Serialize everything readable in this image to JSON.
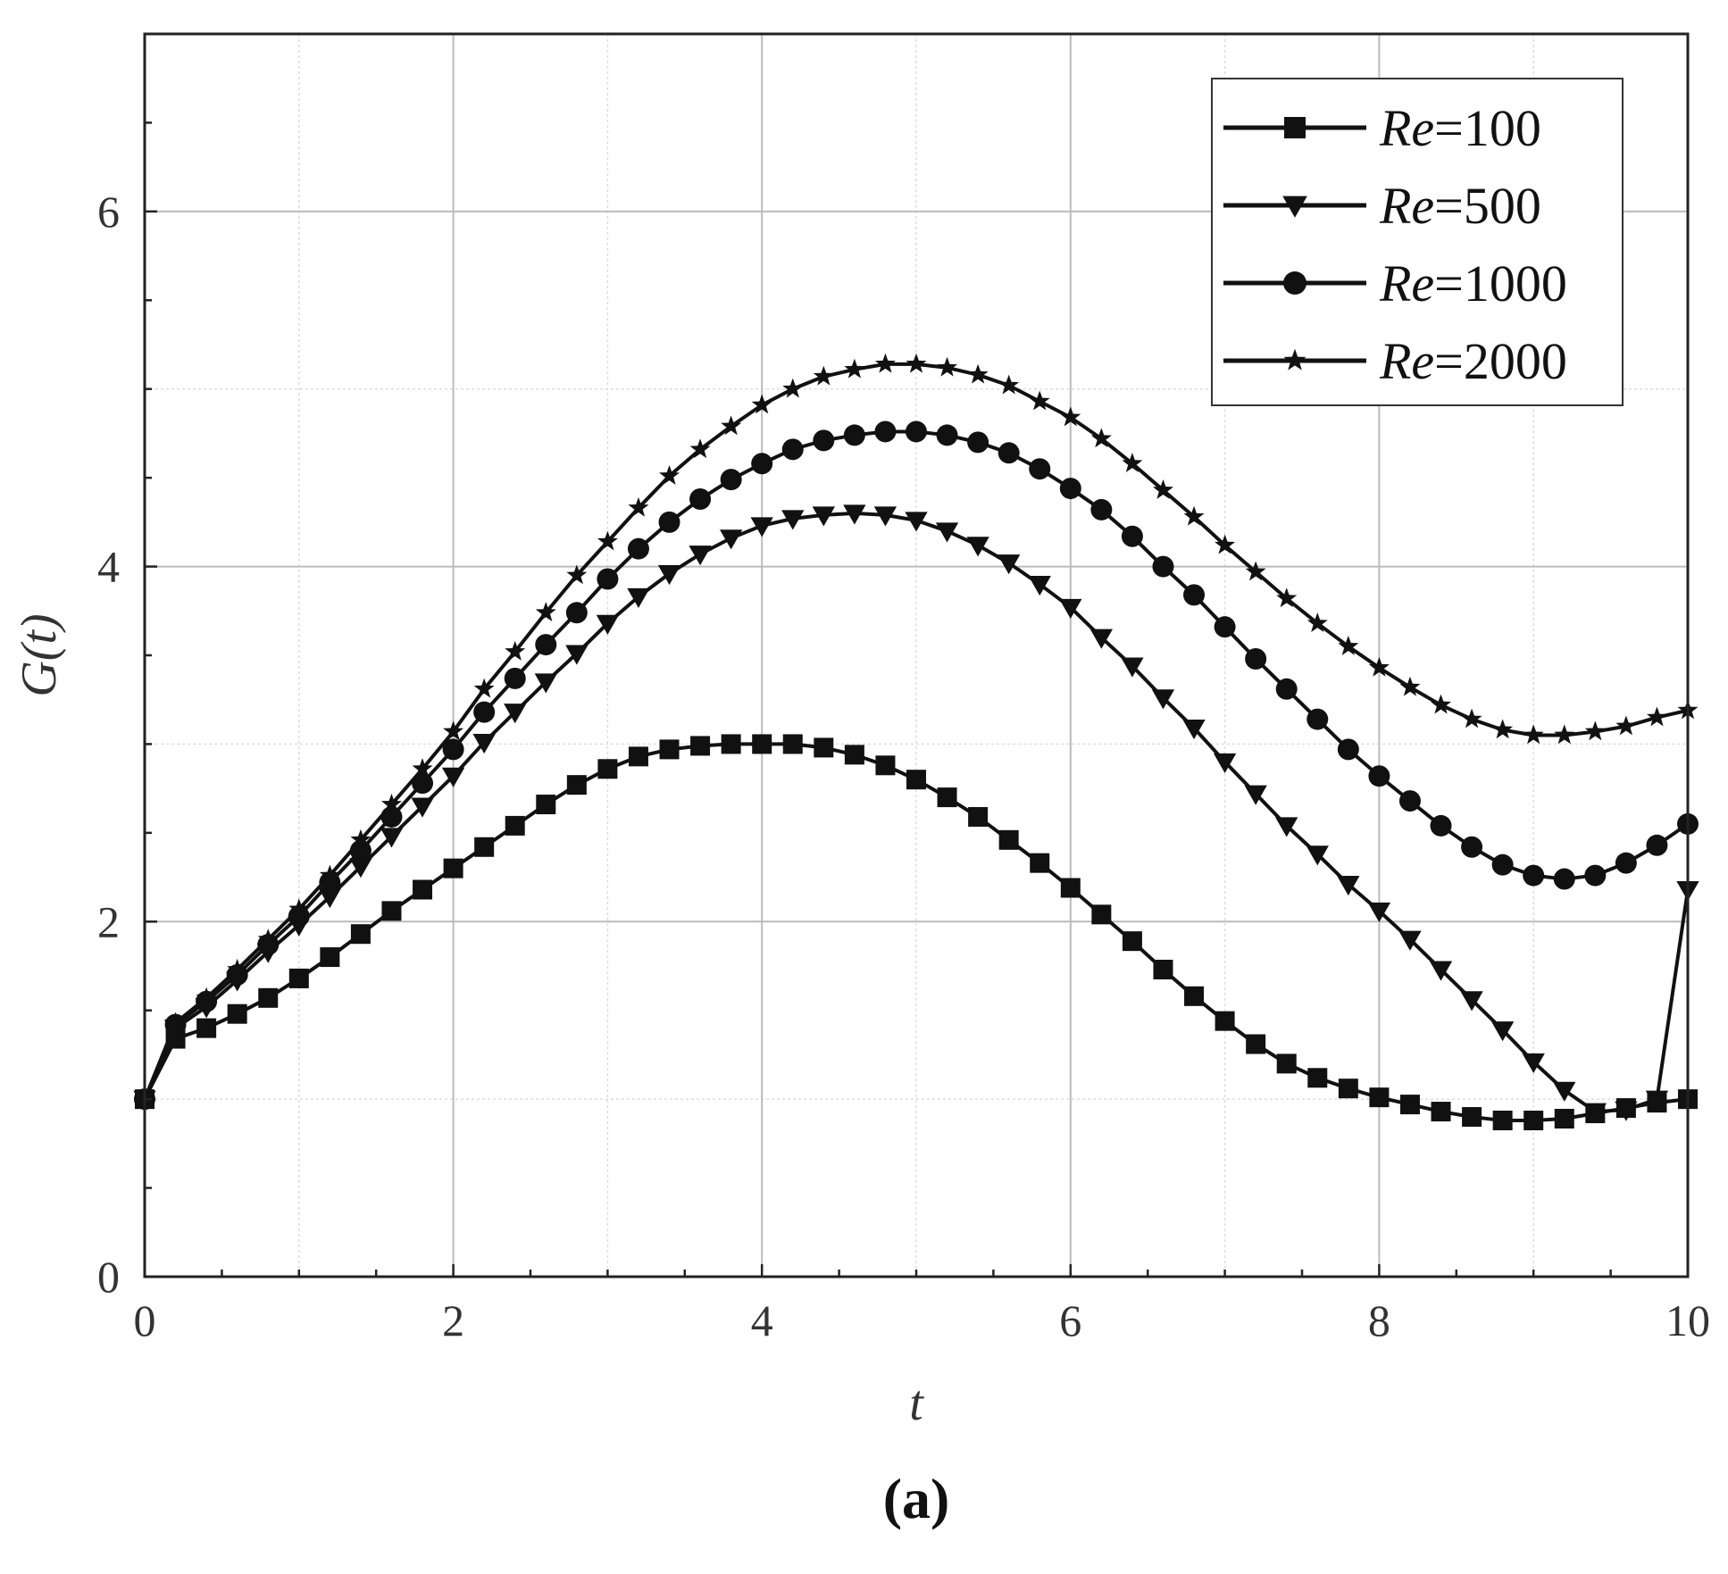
{
  "chart_data": {
    "type": "line",
    "title": "",
    "panel_label": "(a)",
    "xlabel": "t",
    "ylabel": "G(t)",
    "xlim": [
      0,
      10
    ],
    "ylim": [
      0,
      7
    ],
    "xticks": [
      0,
      2,
      4,
      6,
      8,
      10
    ],
    "yticks": [
      0,
      2,
      4,
      6
    ],
    "grid": true,
    "minor_grid": true,
    "legend_position": "top-right",
    "line_color": "#111111",
    "series": [
      {
        "name": "Re=100",
        "name_italic": "Re",
        "name_rest": "=100",
        "marker": "square",
        "x": [
          0,
          0.2,
          0.4,
          0.6,
          0.8,
          1.0,
          1.2,
          1.4,
          1.6,
          1.8,
          2.0,
          2.2,
          2.4,
          2.6,
          2.8,
          3.0,
          3.2,
          3.4,
          3.6,
          3.8,
          4.0,
          4.2,
          4.4,
          4.6,
          4.8,
          5.0,
          5.2,
          5.4,
          5.6,
          5.8,
          6.0,
          6.2,
          6.4,
          6.6,
          6.8,
          7.0,
          7.2,
          7.4,
          7.6,
          7.8,
          8.0,
          8.2,
          8.4,
          8.6,
          8.8,
          9.0,
          9.2,
          9.4,
          9.6,
          9.8,
          10.0
        ],
        "values": [
          1.0,
          1.34,
          1.4,
          1.48,
          1.57,
          1.68,
          1.8,
          1.93,
          2.06,
          2.18,
          2.3,
          2.42,
          2.54,
          2.66,
          2.77,
          2.86,
          2.93,
          2.97,
          2.99,
          3.0,
          3.0,
          3.0,
          2.98,
          2.94,
          2.88,
          2.8,
          2.7,
          2.59,
          2.46,
          2.33,
          2.19,
          2.04,
          1.89,
          1.73,
          1.58,
          1.44,
          1.31,
          1.2,
          1.12,
          1.06,
          1.01,
          0.97,
          0.93,
          0.9,
          0.88,
          0.88,
          0.89,
          0.92,
          0.95,
          0.98,
          1.0
        ]
      },
      {
        "name": "Re=500",
        "name_italic": "Re",
        "name_rest": "=500",
        "marker": "triangle-down",
        "x": [
          0,
          0.2,
          0.4,
          0.6,
          0.8,
          1.0,
          1.2,
          1.4,
          1.6,
          1.8,
          2.0,
          2.2,
          2.4,
          2.6,
          2.8,
          3.0,
          3.2,
          3.4,
          3.6,
          3.8,
          4.0,
          4.2,
          4.4,
          4.6,
          4.8,
          5.0,
          5.2,
          5.4,
          5.6,
          5.8,
          6.0,
          6.2,
          6.4,
          6.6,
          6.8,
          7.0,
          7.2,
          7.4,
          7.6,
          7.8,
          8.0,
          8.2,
          8.4,
          8.6,
          8.8,
          9.0,
          9.2,
          9.4,
          9.6,
          9.8,
          10.0
        ],
        "values": [
          1.0,
          1.4,
          1.52,
          1.67,
          1.83,
          1.98,
          2.14,
          2.31,
          2.48,
          2.65,
          2.82,
          3.01,
          3.18,
          3.35,
          3.51,
          3.68,
          3.83,
          3.96,
          4.07,
          4.16,
          4.23,
          4.27,
          4.29,
          4.3,
          4.29,
          4.26,
          4.2,
          4.12,
          4.02,
          3.9,
          3.77,
          3.6,
          3.44,
          3.26,
          3.09,
          2.9,
          2.72,
          2.54,
          2.38,
          2.21,
          2.06,
          1.9,
          1.73,
          1.56,
          1.39,
          1.21,
          1.05,
          0.93,
          0.94,
          1.0,
          2.18
        ]
      },
      {
        "name": "Re=1000",
        "name_italic": "Re",
        "name_rest": "=1000",
        "marker": "circle",
        "x": [
          0,
          0.2,
          0.4,
          0.6,
          0.8,
          1.0,
          1.2,
          1.4,
          1.6,
          1.8,
          2.0,
          2.2,
          2.4,
          2.6,
          2.8,
          3.0,
          3.2,
          3.4,
          3.6,
          3.8,
          4.0,
          4.2,
          4.4,
          4.6,
          4.8,
          5.0,
          5.2,
          5.4,
          5.6,
          5.8,
          6.0,
          6.2,
          6.4,
          6.6,
          6.8,
          7.0,
          7.2,
          7.4,
          7.6,
          7.8,
          8.0,
          8.2,
          8.4,
          8.6,
          8.8,
          9.0,
          9.2,
          9.4,
          9.6,
          9.8,
          10.0
        ],
        "values": [
          1.0,
          1.42,
          1.55,
          1.7,
          1.87,
          2.03,
          2.22,
          2.4,
          2.59,
          2.78,
          2.97,
          3.18,
          3.37,
          3.56,
          3.74,
          3.93,
          4.1,
          4.25,
          4.38,
          4.49,
          4.58,
          4.66,
          4.71,
          4.74,
          4.76,
          4.76,
          4.74,
          4.7,
          4.64,
          4.55,
          4.44,
          4.32,
          4.17,
          4.0,
          3.84,
          3.66,
          3.48,
          3.31,
          3.14,
          2.97,
          2.82,
          2.68,
          2.54,
          2.42,
          2.32,
          2.26,
          2.24,
          2.26,
          2.33,
          2.43,
          2.55
        ]
      },
      {
        "name": "Re=2000",
        "name_italic": "Re",
        "name_rest": "=2000",
        "marker": "star",
        "x": [
          0,
          0.2,
          0.4,
          0.6,
          0.8,
          1.0,
          1.2,
          1.4,
          1.6,
          1.8,
          2.0,
          2.2,
          2.4,
          2.6,
          2.8,
          3.0,
          3.2,
          3.4,
          3.6,
          3.8,
          4.0,
          4.2,
          4.4,
          4.6,
          4.8,
          5.0,
          5.2,
          5.4,
          5.6,
          5.8,
          6.0,
          6.2,
          6.4,
          6.6,
          6.8,
          7.0,
          7.2,
          7.4,
          7.6,
          7.8,
          8.0,
          8.2,
          8.4,
          8.6,
          8.8,
          9.0,
          9.2,
          9.4,
          9.6,
          9.8,
          10.0
        ],
        "values": [
          1.0,
          1.43,
          1.57,
          1.73,
          1.9,
          2.07,
          2.26,
          2.46,
          2.66,
          2.86,
          3.07,
          3.31,
          3.52,
          3.74,
          3.95,
          4.14,
          4.33,
          4.51,
          4.66,
          4.79,
          4.91,
          5.0,
          5.07,
          5.11,
          5.14,
          5.14,
          5.12,
          5.08,
          5.02,
          4.93,
          4.84,
          4.72,
          4.58,
          4.43,
          4.28,
          4.12,
          3.97,
          3.82,
          3.68,
          3.55,
          3.43,
          3.32,
          3.22,
          3.14,
          3.08,
          3.05,
          3.05,
          3.07,
          3.1,
          3.15,
          3.19
        ]
      }
    ]
  }
}
